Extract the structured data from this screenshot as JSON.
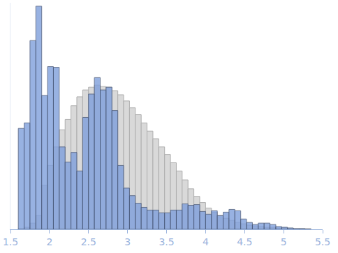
{
  "chart_data": {
    "type": "histogram",
    "bins": [
      1.6,
      1.675,
      1.75,
      1.825,
      1.9,
      1.975,
      2.05,
      2.125,
      2.2,
      2.275,
      2.35,
      2.425,
      2.5,
      2.575,
      2.65,
      2.725,
      2.8,
      2.875,
      2.95,
      3.025,
      3.1,
      3.175,
      3.25,
      3.325,
      3.4,
      3.475,
      3.55,
      3.625,
      3.7,
      3.775,
      3.85,
      3.925,
      4.0,
      4.075,
      4.15,
      4.225,
      4.3,
      4.375,
      4.45,
      4.525,
      4.6,
      4.675,
      4.75,
      4.825,
      4.9,
      4.975,
      5.05,
      5.125,
      5.2,
      5.275,
      5.35
    ],
    "series": [
      {
        "color": "#d9d9d9",
        "values": [
          1,
          3,
          9,
          20,
          64,
          93,
          120,
          145,
          160,
          180,
          193,
          203,
          207,
          210,
          208,
          207,
          202,
          196,
          187,
          177,
          167,
          155,
          143,
          132,
          120,
          109,
          97,
          85,
          72,
          59,
          48,
          39,
          31,
          25,
          20,
          16,
          13,
          10,
          8,
          6,
          5,
          4,
          3,
          3,
          2,
          2,
          1,
          1,
          1,
          1
        ]
      },
      {
        "color": "#7f9fdc",
        "values": [
          147,
          155,
          275,
          325,
          195,
          237,
          236,
          120,
          98,
          112,
          85,
          163,
          197,
          221,
          203,
          207,
          173,
          93,
          60,
          49,
          38,
          32,
          28,
          28,
          24,
          24,
          28,
          28,
          37,
          35,
          36,
          26,
          22,
          27,
          20,
          25,
          29,
          27,
          15,
          10,
          7,
          9,
          9,
          7,
          4,
          3,
          2,
          1,
          1,
          0
        ]
      }
    ],
    "xlim": [
      1.5,
      5.5
    ],
    "xticks": [
      1.5,
      2,
      2.5,
      3,
      3.5,
      4,
      4.5,
      5,
      5.5
    ],
    "ylim": [
      0,
      330
    ],
    "yticks": [],
    "tick_labels": "x",
    "grid": false
  }
}
